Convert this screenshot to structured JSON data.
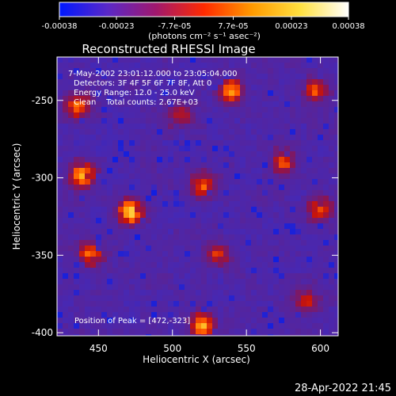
{
  "window": {
    "timestamp": "28-Apr-2022 21:45"
  },
  "colorbar": {
    "tick_labels": [
      "-0.00038",
      "-0.00023",
      "-7.7e-05",
      "7.7e-05",
      "0.00023",
      "0.00038"
    ],
    "unit_label": "(photons cm⁻² s⁻¹ asec⁻²)",
    "range": [
      -0.00038,
      0.00038
    ],
    "colors": [
      "#0018ff",
      "#5a28c8",
      "#a0186e",
      "#ff2a00",
      "#ff9a00",
      "#ffe040",
      "#ffffff"
    ]
  },
  "annotation": {
    "line1": "7-May-2002 23:01:12.000 to 23:05:04.000",
    "line2": "Detectors: 3F 4F 5F 6F 7F 8F, Att 0",
    "line3": "Energy Range: 12.0 - 25.0 keV",
    "line4": "Clean    Total counts: 2.67E+03",
    "peak": "Position of Peak = [472,-323]"
  },
  "chart_data": {
    "type": "heatmap",
    "title": "Reconstructed RHESSI Image",
    "xlabel": "Heliocentric X (arcsec)",
    "ylabel": "Heliocentric Y (arcsec)",
    "xlim": [
      422,
      612
    ],
    "ylim": [
      -402,
      -222
    ],
    "x_ticks": [
      450,
      500,
      550,
      600
    ],
    "y_ticks": [
      -250,
      -300,
      -350,
      -400
    ],
    "peak": {
      "x": 472,
      "y": -323
    },
    "bright_sources": [
      {
        "x": 472,
        "y": -322,
        "intensity": 1.0
      },
      {
        "x": 439,
        "y": -298,
        "intensity": 0.85
      },
      {
        "x": 436,
        "y": -254,
        "intensity": 0.7
      },
      {
        "x": 540,
        "y": -244,
        "intensity": 0.8
      },
      {
        "x": 597,
        "y": -243,
        "intensity": 0.6
      },
      {
        "x": 575,
        "y": -290,
        "intensity": 0.55
      },
      {
        "x": 520,
        "y": -305,
        "intensity": 0.65
      },
      {
        "x": 445,
        "y": -350,
        "intensity": 0.7
      },
      {
        "x": 530,
        "y": -350,
        "intensity": 0.55
      },
      {
        "x": 520,
        "y": -395,
        "intensity": 0.9
      },
      {
        "x": 600,
        "y": -320,
        "intensity": 0.6
      },
      {
        "x": 590,
        "y": -380,
        "intensity": 0.5
      },
      {
        "x": 505,
        "y": -260,
        "intensity": 0.45
      }
    ]
  }
}
